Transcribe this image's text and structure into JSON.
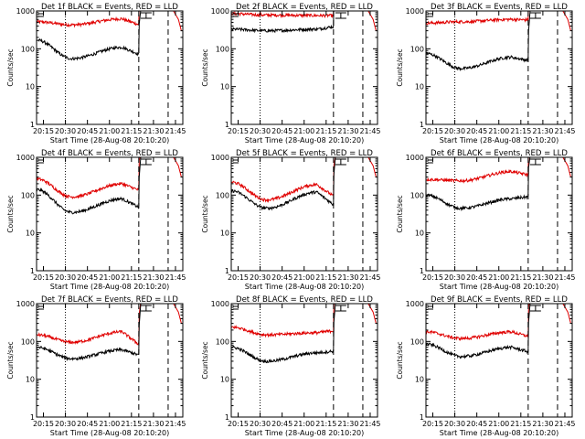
{
  "chart_data": {
    "type": "line",
    "scale": "log",
    "ylim": [
      1,
      1000
    ],
    "yticks": [
      1,
      10,
      100,
      1000
    ],
    "yticklabels": [
      "1",
      "10",
      "100",
      "1000"
    ],
    "xlim": [
      "20:10:20",
      "21:50:00"
    ],
    "xticks": [
      "20:15",
      "20:30",
      "20:45",
      "21:00",
      "21:15",
      "21:30",
      "21:45"
    ],
    "ylabel": "Counts/sec",
    "xlabel": "Start Time (28-Aug-08 20:10:20)",
    "colors": {
      "events": "#000000",
      "lld": "#e00000"
    },
    "markers": [
      {
        "time": "20:30",
        "style": "dotted"
      },
      {
        "time": "21:20",
        "style": "dashed"
      },
      {
        "time": "21:40",
        "style": "dashed"
      }
    ],
    "bracket_time": "21:25",
    "panels": [
      {
        "title": "Det 1f BLACK = Events, RED = LLD",
        "events_profile": {
          "start": 170,
          "dip": 55,
          "hump": 110,
          "bump": 110,
          "end": 75
        },
        "lld_profile": {
          "start": 520,
          "dip": 430,
          "hump": 620,
          "bump": 620,
          "end": 450
        }
      },
      {
        "title": "Det 2f BLACK = Events, RED = LLD",
        "events_profile": {
          "start": 330,
          "dip": 300,
          "hump": 330,
          "bump": 330,
          "end": 380
        },
        "lld_profile": {
          "start": 850,
          "dip": 780,
          "hump": 760,
          "bump": 760,
          "end": 760
        }
      },
      {
        "title": "Det 3f BLACK = Events, RED = LLD",
        "events_profile": {
          "start": 75,
          "dip": 30,
          "hump": 60,
          "bump": 60,
          "end": 50
        },
        "lld_profile": {
          "start": 480,
          "dip": 520,
          "hump": 600,
          "bump": 600,
          "end": 580
        }
      },
      {
        "title": "Det 4f BLACK = Events, RED = LLD",
        "events_profile": {
          "start": 140,
          "dip": 35,
          "hump": 80,
          "bump": 80,
          "end": 50
        },
        "lld_profile": {
          "start": 270,
          "dip": 90,
          "hump": 200,
          "bump": 200,
          "end": 140
        }
      },
      {
        "title": "Det 5f BLACK = Events, RED = LLD",
        "events_profile": {
          "start": 130,
          "dip": 45,
          "hump": 120,
          "bump": 120,
          "end": 60
        },
        "lld_profile": {
          "start": 220,
          "dip": 75,
          "hump": 190,
          "bump": 190,
          "end": 100
        }
      },
      {
        "title": "Det 6f BLACK = Events, RED = LLD",
        "events_profile": {
          "start": 100,
          "dip": 45,
          "hump": 80,
          "bump": 80,
          "end": 90
        },
        "lld_profile": {
          "start": 260,
          "dip": 240,
          "hump": 420,
          "bump": 420,
          "end": 350
        }
      },
      {
        "title": "Det 7f BLACK = Events, RED = LLD",
        "events_profile": {
          "start": 70,
          "dip": 35,
          "hump": 60,
          "bump": 60,
          "end": 45
        },
        "lld_profile": {
          "start": 150,
          "dip": 95,
          "hump": 180,
          "bump": 180,
          "end": 90
        }
      },
      {
        "title": "Det 8f BLACK = Events, RED = LLD",
        "events_profile": {
          "start": 70,
          "dip": 30,
          "hump": 50,
          "bump": 50,
          "end": 55
        },
        "lld_profile": {
          "start": 240,
          "dip": 150,
          "hump": 170,
          "bump": 170,
          "end": 190
        }
      },
      {
        "title": "Det 9f BLACK = Events, RED = LLD",
        "events_profile": {
          "start": 85,
          "dip": 40,
          "hump": 70,
          "bump": 70,
          "end": 55
        },
        "lld_profile": {
          "start": 180,
          "dip": 120,
          "hump": 180,
          "bump": 180,
          "end": 140
        }
      }
    ]
  }
}
